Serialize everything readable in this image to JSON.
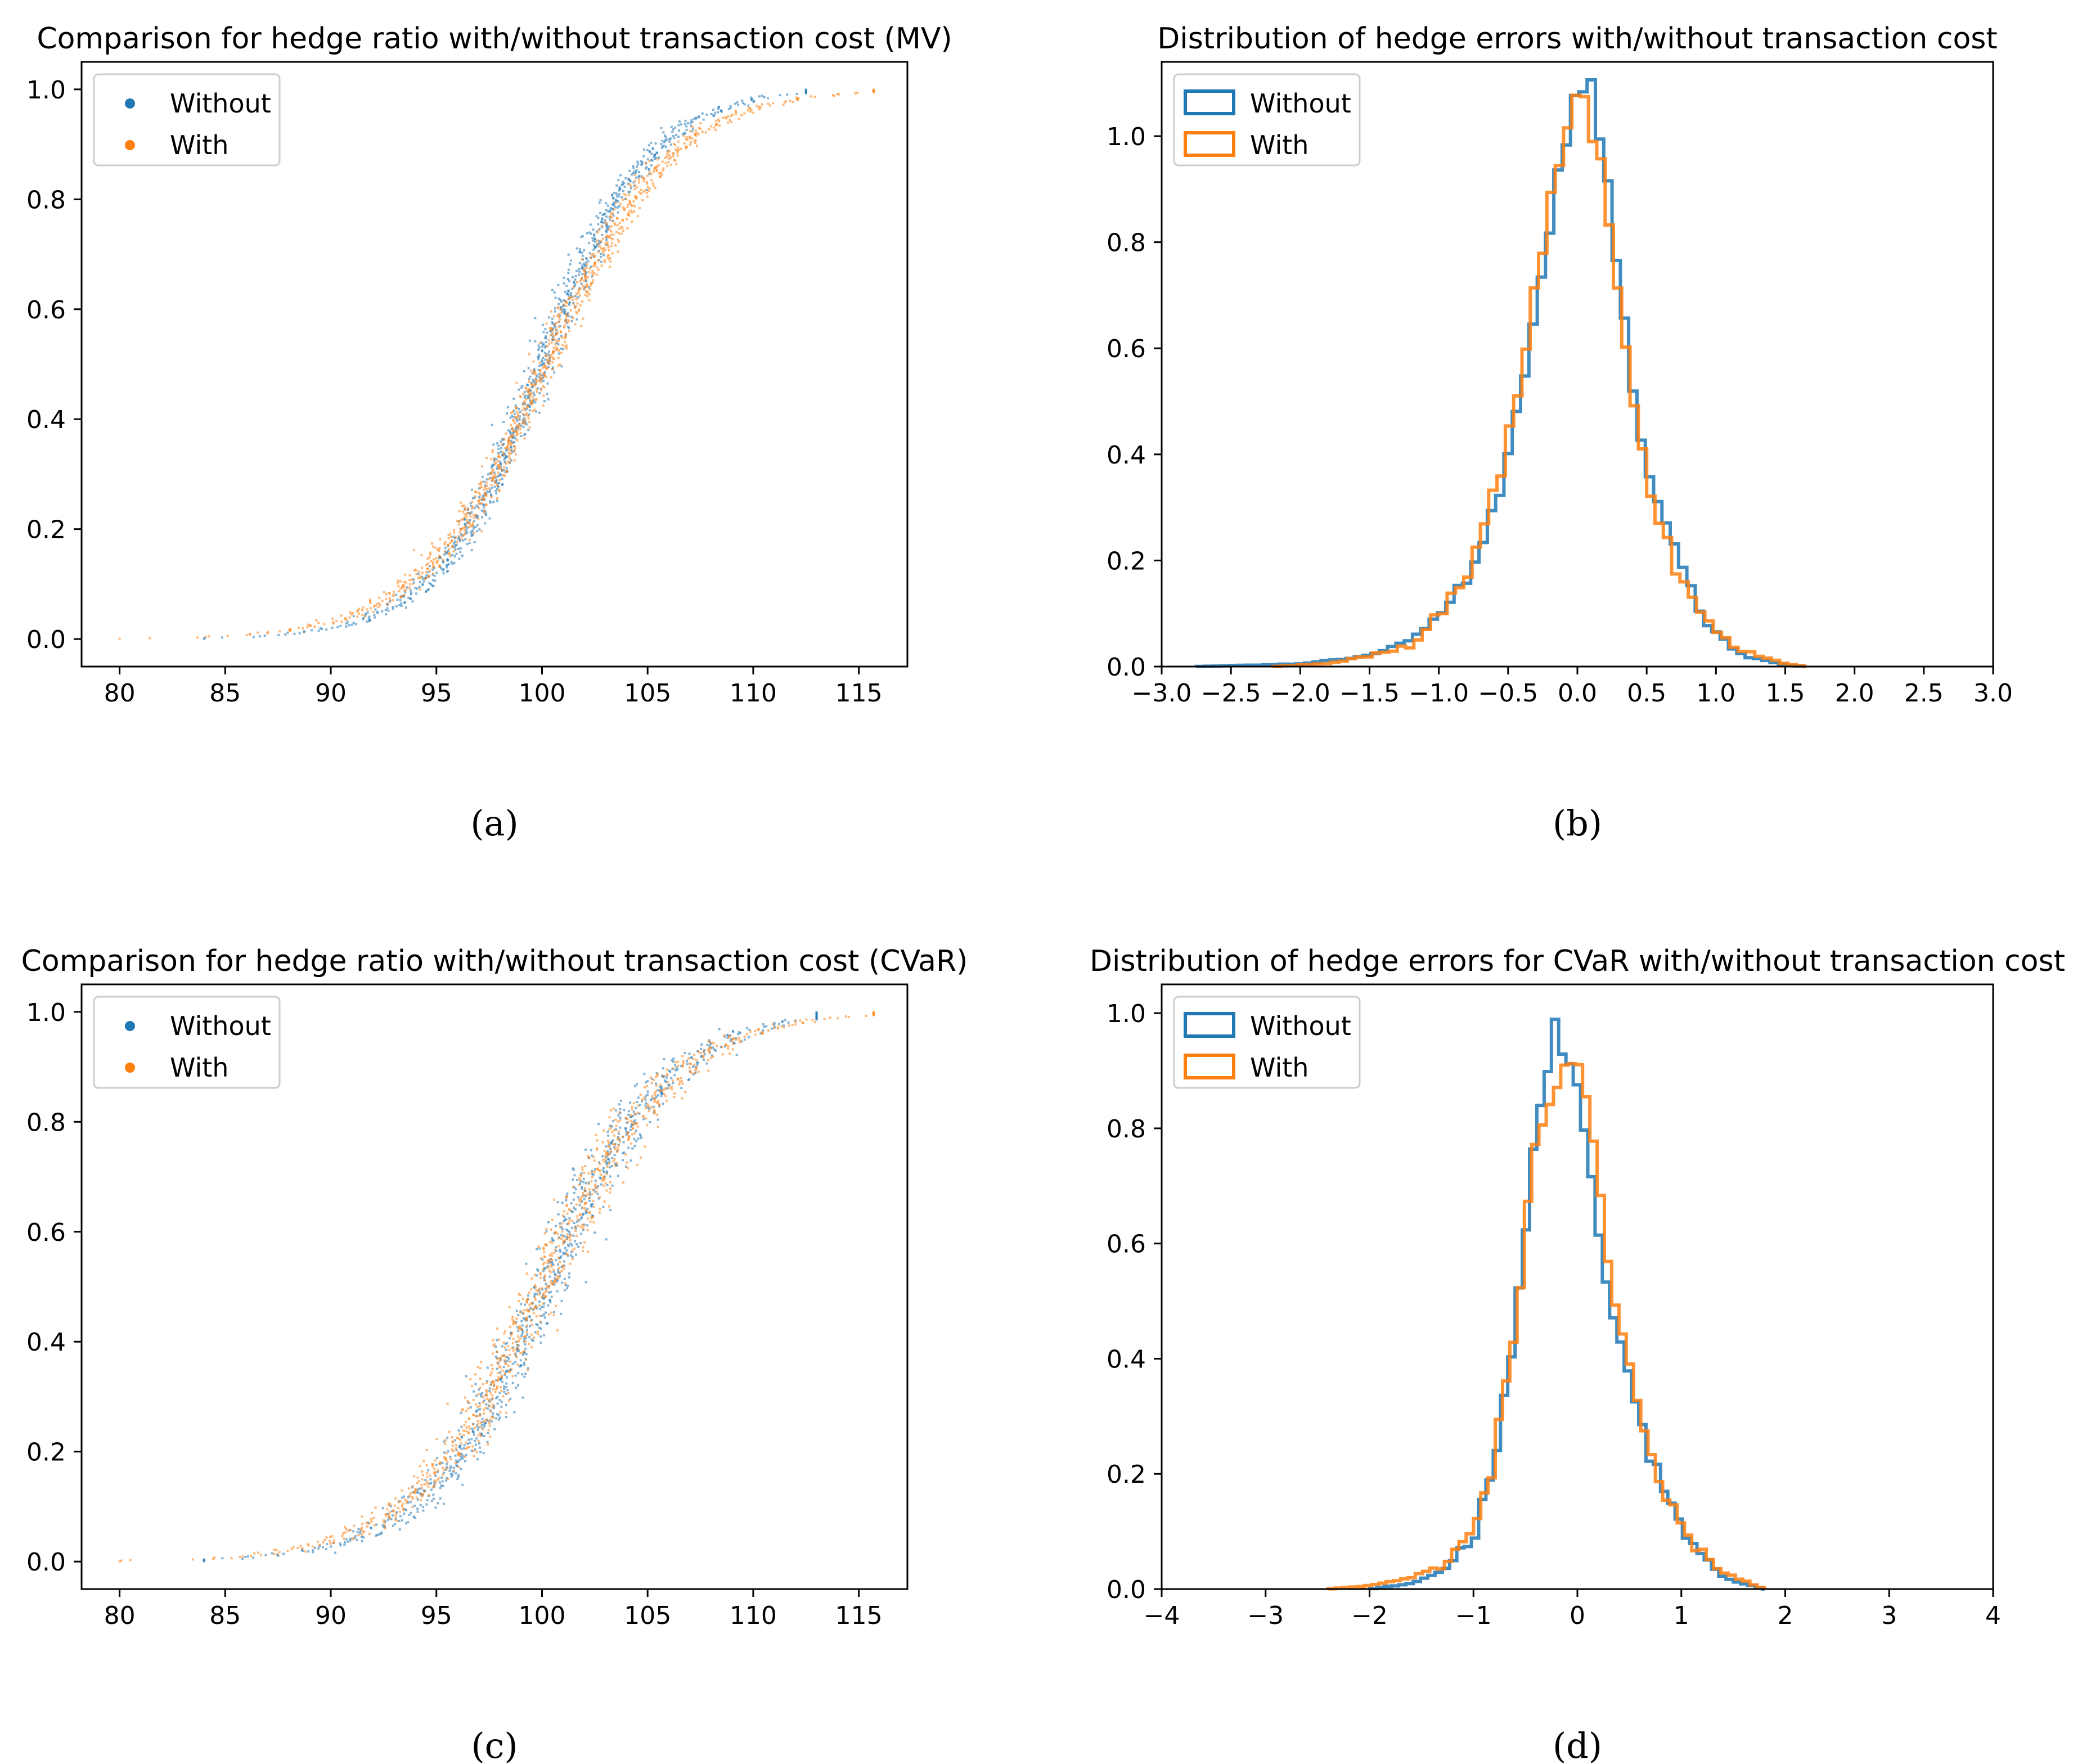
{
  "colors": {
    "without": "#1f77b4",
    "with": "#ff7f0e",
    "axis": "#000000",
    "legend_border": "#cccccc"
  },
  "chart_data": [
    {
      "panel": "a",
      "type": "scatter",
      "title": "Comparison for hedge ratio with/without transaction cost (MV)",
      "caption": "(a)",
      "xlim": [
        78.2,
        117.3
      ],
      "ylim": [
        -0.05,
        1.05
      ],
      "xticks": [
        80,
        85,
        90,
        95,
        100,
        105,
        110,
        115
      ],
      "xtick_labels": [
        "80",
        "85",
        "90",
        "95",
        "100",
        "105",
        "110",
        "115"
      ],
      "yticks": [
        0.0,
        0.2,
        0.4,
        0.6,
        0.8,
        1.0
      ],
      "ytick_labels": [
        "0.0",
        "0.2",
        "0.4",
        "0.6",
        "0.8",
        "1.0"
      ],
      "legend": {
        "position": "top-left",
        "entries": [
          "Without",
          "With"
        ]
      },
      "series": [
        {
          "name": "Without",
          "center": 100.0,
          "scale": 2.55,
          "noise": 0.35,
          "xmin": 84.0,
          "xmax": 112.5,
          "points": 900
        },
        {
          "name": "With",
          "center": 100.2,
          "scale": 2.95,
          "noise": 0.35,
          "xmin": 80.0,
          "xmax": 115.7,
          "points": 900
        }
      ]
    },
    {
      "panel": "b",
      "type": "histogram",
      "title": "Distribution of hedge errors with/without transaction cost",
      "caption": "(b)",
      "xlim": [
        -3.0,
        3.0
      ],
      "ylim": [
        0.0,
        1.14
      ],
      "xticks": [
        -3.0,
        -2.5,
        -2.0,
        -1.5,
        -1.0,
        -0.5,
        0.0,
        0.5,
        1.0,
        1.5,
        2.0,
        2.5,
        3.0
      ],
      "xtick_labels": [
        "−3.0",
        "−2.5",
        "−2.0",
        "−1.5",
        "−1.0",
        "−0.5",
        "0.0",
        "0.5",
        "1.0",
        "1.5",
        "2.0",
        "2.5",
        "3.0"
      ],
      "yticks": [
        0.0,
        0.2,
        0.4,
        0.6,
        0.8,
        1.0
      ],
      "ytick_labels": [
        "0.0",
        "0.2",
        "0.4",
        "0.6",
        "0.8",
        "1.0"
      ],
      "legend": {
        "position": "top-left",
        "entries": [
          "Without",
          "With"
        ]
      },
      "series": [
        {
          "name": "Without",
          "knots": [
            [
              -2.75,
              0.0
            ],
            [
              -2.0,
              0.005
            ],
            [
              -1.5,
              0.02
            ],
            [
              -1.2,
              0.05
            ],
            [
              -1.0,
              0.09
            ],
            [
              -0.8,
              0.17
            ],
            [
              -0.6,
              0.3
            ],
            [
              -0.4,
              0.52
            ],
            [
              -0.2,
              0.83
            ],
            [
              -0.1,
              0.98
            ],
            [
              0.0,
              1.08
            ],
            [
              0.1,
              1.1
            ],
            [
              0.2,
              0.93
            ],
            [
              0.3,
              0.75
            ],
            [
              0.4,
              0.5
            ],
            [
              0.5,
              0.37
            ],
            [
              0.6,
              0.31
            ],
            [
              0.7,
              0.21
            ],
            [
              0.85,
              0.12
            ],
            [
              1.0,
              0.06
            ],
            [
              1.2,
              0.02
            ],
            [
              1.5,
              0.003
            ],
            [
              1.65,
              0.0
            ]
          ],
          "bin": 0.06
        },
        {
          "name": "With",
          "knots": [
            [
              -2.2,
              0.0
            ],
            [
              -1.8,
              0.006
            ],
            [
              -1.5,
              0.02
            ],
            [
              -1.2,
              0.04
            ],
            [
              -1.0,
              0.1
            ],
            [
              -0.8,
              0.18
            ],
            [
              -0.6,
              0.32
            ],
            [
              -0.4,
              0.56
            ],
            [
              -0.2,
              0.86
            ],
            [
              -0.1,
              1.0
            ],
            [
              0.0,
              1.1
            ],
            [
              0.1,
              1.02
            ],
            [
              0.2,
              0.9
            ],
            [
              0.3,
              0.7
            ],
            [
              0.4,
              0.5
            ],
            [
              0.5,
              0.36
            ],
            [
              0.6,
              0.27
            ],
            [
              0.7,
              0.2
            ],
            [
              0.85,
              0.12
            ],
            [
              1.0,
              0.06
            ],
            [
              1.2,
              0.03
            ],
            [
              1.5,
              0.005
            ],
            [
              1.65,
              0.0
            ]
          ],
          "bin": 0.06
        }
      ]
    },
    {
      "panel": "c",
      "type": "scatter",
      "title": "Comparison for hedge ratio with/without transaction cost (CVaR)",
      "caption": "(c)",
      "xlim": [
        78.2,
        117.3
      ],
      "ylim": [
        -0.05,
        1.05
      ],
      "xticks": [
        80,
        85,
        90,
        95,
        100,
        105,
        110,
        115
      ],
      "xtick_labels": [
        "80",
        "85",
        "90",
        "95",
        "100",
        "105",
        "110",
        "115"
      ],
      "yticks": [
        0.0,
        0.2,
        0.4,
        0.6,
        0.8,
        1.0
      ],
      "ytick_labels": [
        "0.0",
        "0.2",
        "0.4",
        "0.6",
        "0.8",
        "1.0"
      ],
      "legend": {
        "position": "top-left",
        "entries": [
          "Without",
          "With"
        ]
      },
      "series": [
        {
          "name": "Without",
          "center": 100.2,
          "scale": 2.9,
          "noise": 0.55,
          "xmin": 84.0,
          "xmax": 113.0,
          "points": 900
        },
        {
          "name": "With",
          "center": 100.0,
          "scale": 3.1,
          "noise": 0.55,
          "xmin": 80.0,
          "xmax": 115.7,
          "points": 900
        }
      ]
    },
    {
      "panel": "d",
      "type": "histogram",
      "title": "Distribution of hedge errors for CVaR with/without transaction cost",
      "caption": "(d)",
      "xlim": [
        -4.0,
        4.0
      ],
      "ylim": [
        0.0,
        1.05
      ],
      "xticks": [
        -4,
        -3,
        -2,
        -1,
        0,
        1,
        2,
        3,
        4
      ],
      "xtick_labels": [
        "−4",
        "−3",
        "−2",
        "−1",
        "0",
        "1",
        "2",
        "3",
        "4"
      ],
      "yticks": [
        0.0,
        0.2,
        0.4,
        0.6,
        0.8,
        1.0
      ],
      "ytick_labels": [
        "0.0",
        "0.2",
        "0.4",
        "0.6",
        "0.8",
        "1.0"
      ],
      "legend": {
        "position": "top-left",
        "entries": [
          "Without",
          "With"
        ]
      },
      "series": [
        {
          "name": "Without",
          "knots": [
            [
              -2.0,
              0.0
            ],
            [
              -1.6,
              0.01
            ],
            [
              -1.3,
              0.03
            ],
            [
              -1.0,
              0.09
            ],
            [
              -0.8,
              0.21
            ],
            [
              -0.6,
              0.45
            ],
            [
              -0.5,
              0.62
            ],
            [
              -0.4,
              0.8
            ],
            [
              -0.3,
              0.9
            ],
            [
              -0.2,
              1.0
            ],
            [
              -0.1,
              0.9
            ],
            [
              0.0,
              0.88
            ],
            [
              0.1,
              0.78
            ],
            [
              0.2,
              0.62
            ],
            [
              0.3,
              0.5
            ],
            [
              0.4,
              0.42
            ],
            [
              0.5,
              0.36
            ],
            [
              0.6,
              0.3
            ],
            [
              0.7,
              0.22
            ],
            [
              0.9,
              0.15
            ],
            [
              1.1,
              0.08
            ],
            [
              1.4,
              0.02
            ],
            [
              1.8,
              0.0
            ]
          ],
          "bin": 0.07
        },
        {
          "name": "With",
          "knots": [
            [
              -2.4,
              0.0
            ],
            [
              -2.0,
              0.006
            ],
            [
              -1.6,
              0.02
            ],
            [
              -1.3,
              0.04
            ],
            [
              -1.0,
              0.1
            ],
            [
              -0.8,
              0.22
            ],
            [
              -0.6,
              0.46
            ],
            [
              -0.4,
              0.77
            ],
            [
              -0.2,
              0.88
            ],
            [
              -0.1,
              0.91
            ],
            [
              0.0,
              0.93
            ],
            [
              0.1,
              0.84
            ],
            [
              0.2,
              0.73
            ],
            [
              0.3,
              0.56
            ],
            [
              0.4,
              0.46
            ],
            [
              0.5,
              0.38
            ],
            [
              0.6,
              0.28
            ],
            [
              0.7,
              0.22
            ],
            [
              0.9,
              0.14
            ],
            [
              1.1,
              0.08
            ],
            [
              1.4,
              0.03
            ],
            [
              1.8,
              0.0
            ]
          ],
          "bin": 0.07
        }
      ]
    }
  ]
}
